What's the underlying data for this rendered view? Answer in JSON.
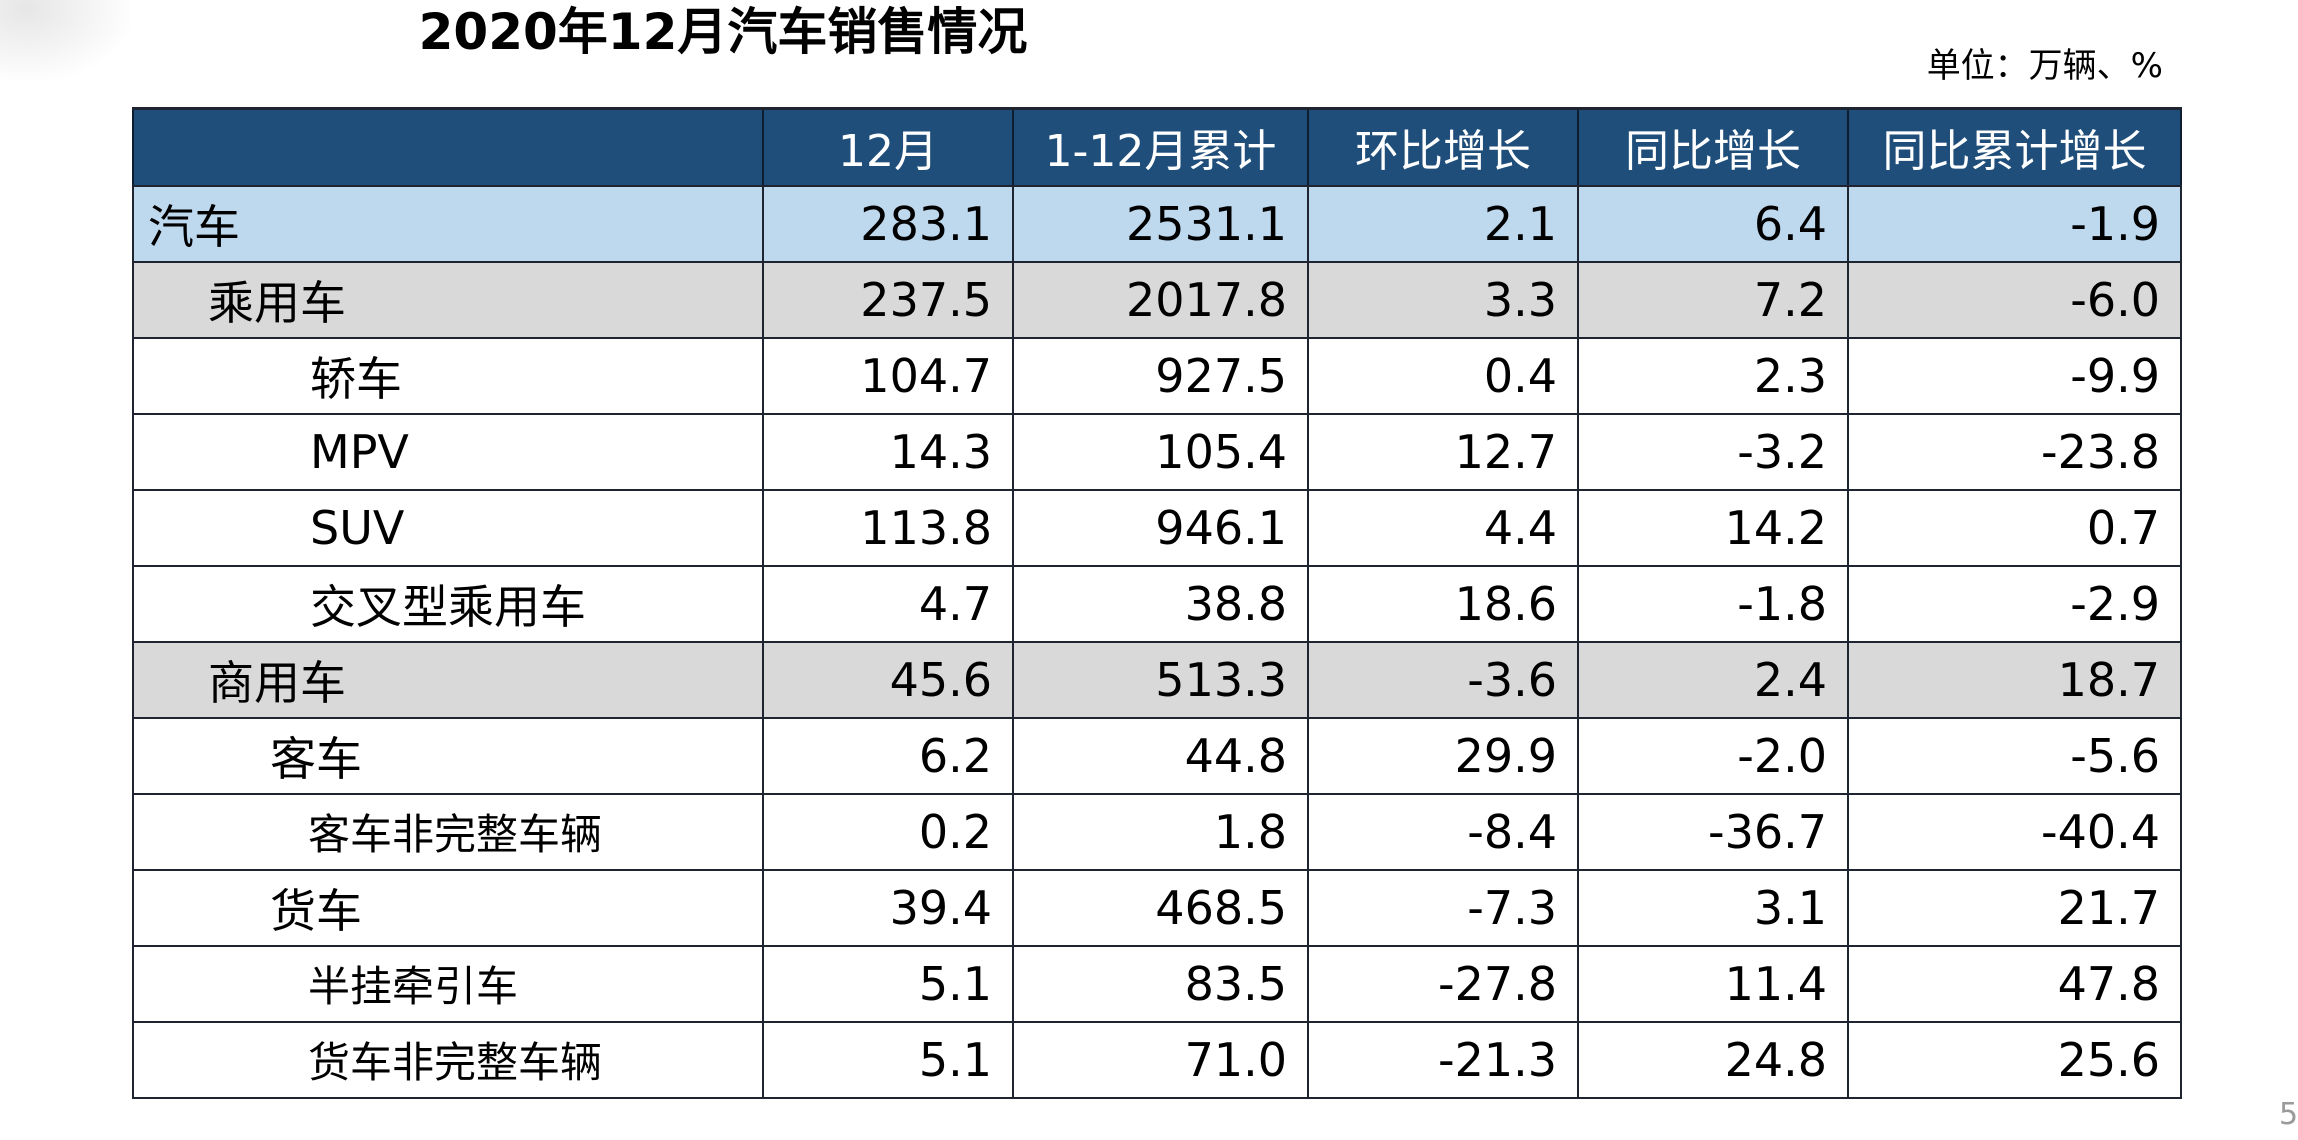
{
  "title": "2020年12月汽车销售情况",
  "unit_label": "单位：万辆、%",
  "page_number": "5",
  "table": {
    "headers": [
      "",
      "12月",
      "1-12月累计",
      "环比增长",
      "同比增长",
      "同比累计增长"
    ],
    "rows": [
      {
        "name": "汽车",
        "values": [
          "283.1",
          "2531.1",
          "2.1",
          "6.4",
          "-1.9"
        ]
      },
      {
        "name": "乘用车",
        "values": [
          "237.5",
          "2017.8",
          "3.3",
          "7.2",
          "-6.0"
        ]
      },
      {
        "name": "轿车",
        "values": [
          "104.7",
          "927.5",
          "0.4",
          "2.3",
          "-9.9"
        ]
      },
      {
        "name": "MPV",
        "values": [
          "14.3",
          "105.4",
          "12.7",
          "-3.2",
          "-23.8"
        ]
      },
      {
        "name": "SUV",
        "values": [
          "113.8",
          "946.1",
          "4.4",
          "14.2",
          "0.7"
        ]
      },
      {
        "name": "交叉型乘用车",
        "values": [
          "4.7",
          "38.8",
          "18.6",
          "-1.8",
          "-2.9"
        ]
      },
      {
        "name": "商用车",
        "values": [
          "45.6",
          "513.3",
          "-3.6",
          "2.4",
          "18.7"
        ]
      },
      {
        "name": "客车",
        "values": [
          "6.2",
          "44.8",
          "29.9",
          "-2.0",
          "-5.6"
        ]
      },
      {
        "name": "客车非完整车辆",
        "values": [
          "0.2",
          "1.8",
          "-8.4",
          "-36.7",
          "-40.4"
        ]
      },
      {
        "name": "货车",
        "values": [
          "39.4",
          "468.5",
          "-7.3",
          "3.1",
          "21.7"
        ]
      },
      {
        "name": "半挂牵引车",
        "values": [
          "5.1",
          "83.5",
          "-27.8",
          "11.4",
          "47.8"
        ]
      },
      {
        "name": "货车非完整车辆",
        "values": [
          "5.1",
          "71.0",
          "-21.3",
          "24.8",
          "25.6"
        ]
      }
    ]
  },
  "colors": {
    "header_bg": "#1f4e7a",
    "total_row_bg": "#bed8ee",
    "category_row_bg": "#d9d9d9"
  }
}
